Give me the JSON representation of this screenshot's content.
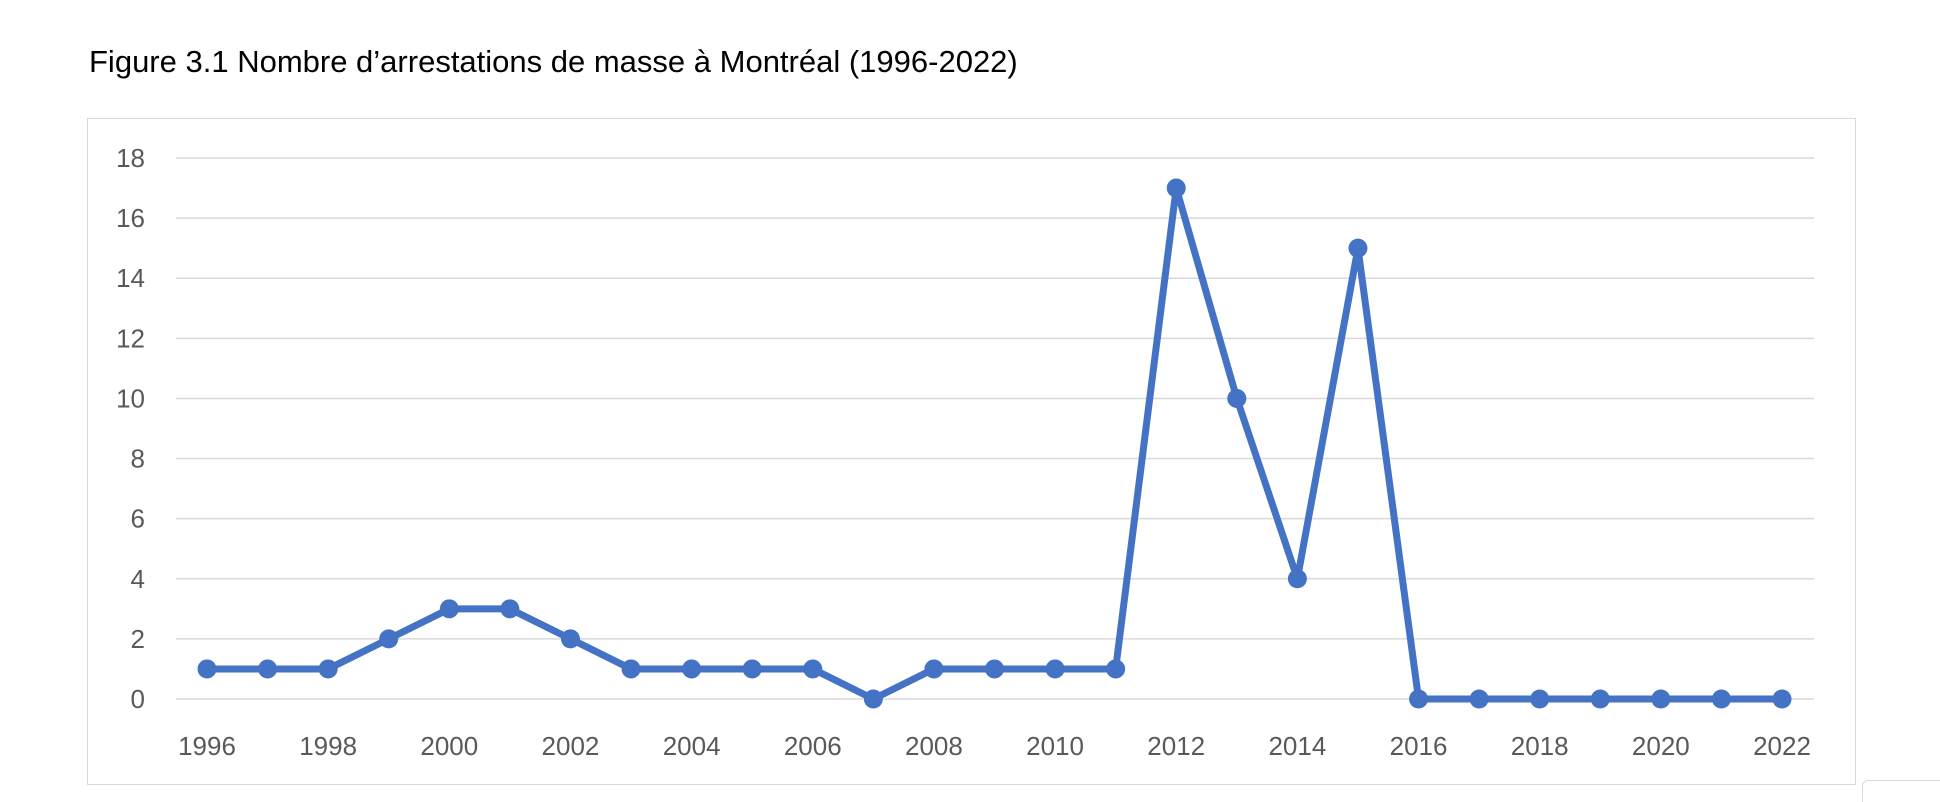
{
  "figure_title": "Figure 3.1 Nombre d’arrestations de masse à Montréal (1996-2022)",
  "colors": {
    "series_line": "#4472C4",
    "gridline": "#d9d9d9",
    "tick_text": "#595959",
    "frame_border": "#d9d9d9"
  },
  "chart_data": {
    "type": "line",
    "title": "",
    "xlabel": "",
    "ylabel": "",
    "x": [
      1996,
      1997,
      1998,
      1999,
      2000,
      2001,
      2002,
      2003,
      2004,
      2005,
      2006,
      2007,
      2008,
      2009,
      2010,
      2011,
      2012,
      2013,
      2014,
      2015,
      2016,
      2017,
      2018,
      2019,
      2020,
      2021,
      2022
    ],
    "series": [
      {
        "values": [
          1,
          1,
          1,
          2,
          3,
          3,
          2,
          1,
          1,
          1,
          1,
          0,
          1,
          1,
          1,
          1,
          17,
          10,
          4,
          15,
          0,
          0,
          0,
          0,
          0,
          0,
          0
        ]
      }
    ],
    "x_tick_labels": [
      "1996",
      "1998",
      "2000",
      "2002",
      "2004",
      "2006",
      "2008",
      "2010",
      "2012",
      "2014",
      "2016",
      "2018",
      "2020",
      "2022"
    ],
    "y_tick_labels": [
      "0",
      "2",
      "4",
      "6",
      "8",
      "10",
      "12",
      "14",
      "16",
      "18"
    ],
    "xlim": [
      1996,
      2022
    ],
    "ylim": [
      0,
      18
    ],
    "grid": true,
    "markers": true,
    "legend": "none"
  }
}
